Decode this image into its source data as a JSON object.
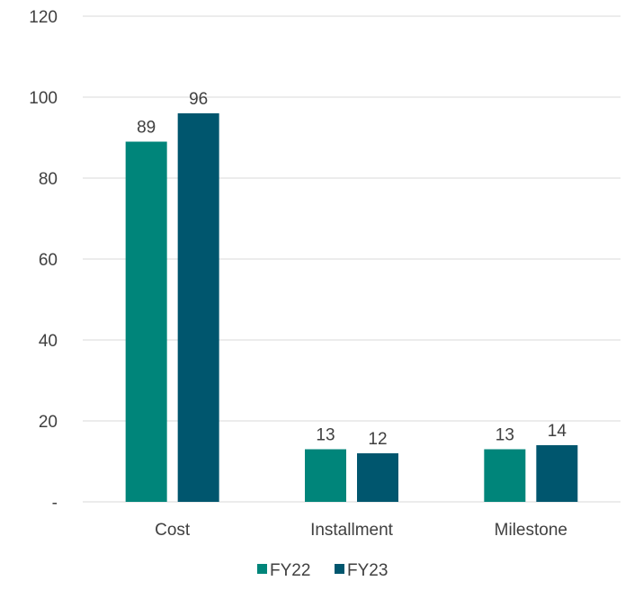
{
  "chart_data": {
    "type": "bar",
    "title": "",
    "xlabel": "",
    "ylabel": "",
    "categories": [
      "Cost",
      "Installment",
      "Milestone"
    ],
    "series": [
      {
        "name": "FY22",
        "values": [
          89,
          13,
          13
        ],
        "color": "#00857a"
      },
      {
        "name": "FY23",
        "values": [
          96,
          12,
          14
        ],
        "color": "#00566e"
      }
    ],
    "ylim": [
      0,
      120
    ],
    "yticks": [
      0,
      20,
      40,
      60,
      80,
      100,
      120
    ],
    "ytick_labels": [
      "-",
      "20",
      "40",
      "60",
      "80",
      "100",
      "120"
    ],
    "grid": true,
    "legend_position": "bottom",
    "data_labels": true
  }
}
